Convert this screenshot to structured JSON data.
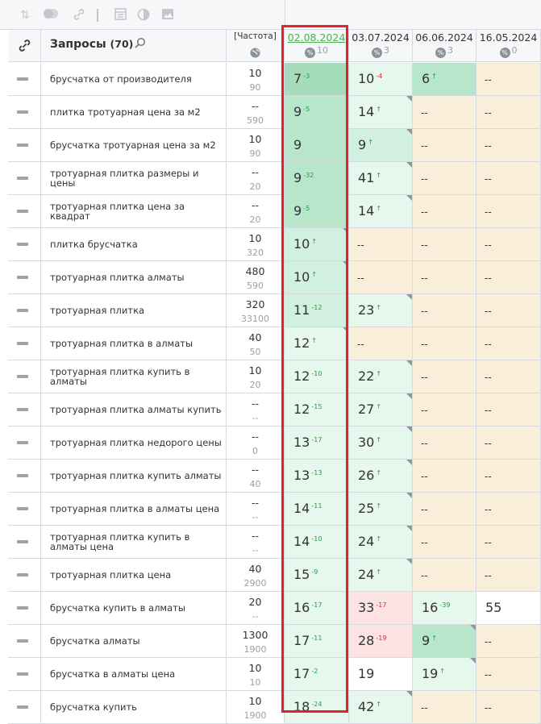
{
  "toolbar": {
    "icons": [
      "sort-icon",
      "toggle-icon",
      "link-icon",
      "calendar-icon",
      "contrast-icon",
      "image-icon"
    ]
  },
  "header": {
    "title": "Запросы",
    "count": "(70)",
    "freq_label": "[Частота]",
    "dates": [
      {
        "date": "02.08.2024",
        "count": "10",
        "active": true
      },
      {
        "date": "03.07.2024",
        "count": "3",
        "active": false
      },
      {
        "date": "06.06.2024",
        "count": "3",
        "active": false
      },
      {
        "date": "16.05.2024",
        "count": "0",
        "active": false
      }
    ]
  },
  "colors": {
    "highlight": "#e2232b",
    "up": "#2a9a3f",
    "down": "#e2232b",
    "link_date": "#4caf50"
  },
  "rows": [
    {
      "q": "брусчатка от производителя",
      "f1": "10",
      "f2": "90",
      "cells": [
        {
          "v": "7",
          "d": "-3",
          "t": "up",
          "bg": "g4"
        },
        {
          "v": "10",
          "d": "-4",
          "t": "dn",
          "bg": "g1"
        },
        {
          "v": "6",
          "d": "↑",
          "t": "up",
          "bg": "g3"
        },
        {
          "v": "--",
          "bg": "bg"
        }
      ]
    },
    {
      "q": "плитка тротуарная цена за м2",
      "f1": "--",
      "f2": "590",
      "cells": [
        {
          "v": "9",
          "d": "-5",
          "t": "up",
          "bg": "g3"
        },
        {
          "v": "14",
          "d": "↑",
          "t": "up",
          "bg": "g1",
          "tri": true
        },
        {
          "v": "--",
          "bg": "bg"
        },
        {
          "v": "--",
          "bg": "bg"
        }
      ]
    },
    {
      "q": "брусчатка тротуарная цена за м2",
      "f1": "10",
      "f2": "90",
      "cells": [
        {
          "v": "9",
          "d": "",
          "bg": "g3"
        },
        {
          "v": "9",
          "d": "↑",
          "t": "up",
          "bg": "g2",
          "tri": true
        },
        {
          "v": "--",
          "bg": "bg"
        },
        {
          "v": "--",
          "bg": "bg"
        }
      ]
    },
    {
      "q": "тротуарная плитка размеры и цены",
      "f1": "--",
      "f2": "20",
      "cells": [
        {
          "v": "9",
          "d": "-32",
          "t": "up",
          "bg": "g3"
        },
        {
          "v": "41",
          "d": "↑",
          "t": "up",
          "bg": "g1",
          "tri": true
        },
        {
          "v": "--",
          "bg": "bg"
        },
        {
          "v": "--",
          "bg": "bg"
        }
      ]
    },
    {
      "q": "тротуарная плитка цена за квадрат",
      "f1": "--",
      "f2": "20",
      "cells": [
        {
          "v": "9",
          "d": "-5",
          "t": "up",
          "bg": "g3"
        },
        {
          "v": "14",
          "d": "↑",
          "t": "up",
          "bg": "g1",
          "tri": true
        },
        {
          "v": "--",
          "bg": "bg"
        },
        {
          "v": "--",
          "bg": "bg"
        }
      ]
    },
    {
      "q": "плитка брусчатка",
      "f1": "10",
      "f2": "320",
      "cells": [
        {
          "v": "10",
          "d": "↑",
          "t": "up",
          "bg": "g2",
          "tri": true
        },
        {
          "v": "--",
          "bg": "bg"
        },
        {
          "v": "--",
          "bg": "bg"
        },
        {
          "v": "--",
          "bg": "bg"
        }
      ]
    },
    {
      "q": "тротуарная плитка алматы",
      "f1": "480",
      "f2": "590",
      "cells": [
        {
          "v": "10",
          "d": "↑",
          "t": "up",
          "bg": "g2",
          "tri": true
        },
        {
          "v": "--",
          "bg": "bg"
        },
        {
          "v": "--",
          "bg": "bg"
        },
        {
          "v": "--",
          "bg": "bg"
        }
      ]
    },
    {
      "q": "тротуарная плитка",
      "f1": "320",
      "f2": "33100",
      "cells": [
        {
          "v": "11",
          "d": "-12",
          "t": "up",
          "bg": "g2"
        },
        {
          "v": "23",
          "d": "↑",
          "t": "up",
          "bg": "g1",
          "tri": true
        },
        {
          "v": "--",
          "bg": "bg"
        },
        {
          "v": "--",
          "bg": "bg"
        }
      ]
    },
    {
      "q": "тротуарная плитка в алматы",
      "f1": "40",
      "f2": "50",
      "cells": [
        {
          "v": "12",
          "d": "↑",
          "t": "up",
          "bg": "g1",
          "tri": true
        },
        {
          "v": "--",
          "bg": "bg"
        },
        {
          "v": "--",
          "bg": "bg"
        },
        {
          "v": "--",
          "bg": "bg"
        }
      ]
    },
    {
      "q": "тротуарная плитка купить в алматы",
      "f1": "10",
      "f2": "20",
      "cells": [
        {
          "v": "12",
          "d": "-10",
          "t": "up",
          "bg": "g1"
        },
        {
          "v": "22",
          "d": "↑",
          "t": "up",
          "bg": "g1",
          "tri": true
        },
        {
          "v": "--",
          "bg": "bg"
        },
        {
          "v": "--",
          "bg": "bg"
        }
      ]
    },
    {
      "q": "тротуарная плитка алматы купить",
      "f1": "--",
      "f2": "--",
      "cells": [
        {
          "v": "12",
          "d": "-15",
          "t": "up",
          "bg": "g1"
        },
        {
          "v": "27",
          "d": "↑",
          "t": "up",
          "bg": "g1",
          "tri": true
        },
        {
          "v": "--",
          "bg": "bg"
        },
        {
          "v": "--",
          "bg": "bg"
        }
      ]
    },
    {
      "q": "тротуарная плитка недорого цены",
      "f1": "--",
      "f2": "0",
      "cells": [
        {
          "v": "13",
          "d": "-17",
          "t": "up",
          "bg": "g1"
        },
        {
          "v": "30",
          "d": "↑",
          "t": "up",
          "bg": "g1",
          "tri": true
        },
        {
          "v": "--",
          "bg": "bg"
        },
        {
          "v": "--",
          "bg": "bg"
        }
      ]
    },
    {
      "q": "тротуарная плитка купить алматы",
      "f1": "--",
      "f2": "40",
      "cells": [
        {
          "v": "13",
          "d": "-13",
          "t": "up",
          "bg": "g1"
        },
        {
          "v": "26",
          "d": "↑",
          "t": "up",
          "bg": "g1",
          "tri": true
        },
        {
          "v": "--",
          "bg": "bg"
        },
        {
          "v": "--",
          "bg": "bg"
        }
      ]
    },
    {
      "q": "тротуарная плитка в алматы цена",
      "f1": "--",
      "f2": "--",
      "cells": [
        {
          "v": "14",
          "d": "-11",
          "t": "up",
          "bg": "g1"
        },
        {
          "v": "25",
          "d": "↑",
          "t": "up",
          "bg": "g1",
          "tri": true
        },
        {
          "v": "--",
          "bg": "bg"
        },
        {
          "v": "--",
          "bg": "bg"
        }
      ]
    },
    {
      "q": "тротуарная плитка купить в алматы цена",
      "f1": "--",
      "f2": "--",
      "cells": [
        {
          "v": "14",
          "d": "-10",
          "t": "up",
          "bg": "g1"
        },
        {
          "v": "24",
          "d": "↑",
          "t": "up",
          "bg": "g1",
          "tri": true
        },
        {
          "v": "--",
          "bg": "bg"
        },
        {
          "v": "--",
          "bg": "bg"
        }
      ]
    },
    {
      "q": "тротуарная плитка цена",
      "f1": "40",
      "f2": "2900",
      "cells": [
        {
          "v": "15",
          "d": "-9",
          "t": "up",
          "bg": "g1"
        },
        {
          "v": "24",
          "d": "↑",
          "t": "up",
          "bg": "g1",
          "tri": true
        },
        {
          "v": "--",
          "bg": "bg"
        },
        {
          "v": "--",
          "bg": "bg"
        }
      ]
    },
    {
      "q": "брусчатка купить в алматы",
      "f1": "20",
      "f2": "--",
      "cells": [
        {
          "v": "16",
          "d": "-17",
          "t": "up",
          "bg": "g1"
        },
        {
          "v": "33",
          "d": "-17",
          "t": "dn",
          "bg": "pk"
        },
        {
          "v": "16",
          "d": "-39",
          "t": "up",
          "bg": "g1"
        },
        {
          "v": "55",
          "d": "",
          "bg": "wh"
        }
      ]
    },
    {
      "q": "брусчатка алматы",
      "f1": "1300",
      "f2": "1900",
      "cells": [
        {
          "v": "17",
          "d": "-11",
          "t": "up",
          "bg": "g1"
        },
        {
          "v": "28",
          "d": "-19",
          "t": "dn",
          "bg": "pk"
        },
        {
          "v": "9",
          "d": "↑",
          "t": "up",
          "bg": "g3",
          "tri": true
        },
        {
          "v": "--",
          "bg": "bg"
        }
      ]
    },
    {
      "q": "брусчатка в алматы цена",
      "f1": "10",
      "f2": "10",
      "cells": [
        {
          "v": "17",
          "d": "-2",
          "t": "up",
          "bg": "g1"
        },
        {
          "v": "19",
          "d": "",
          "bg": "wh"
        },
        {
          "v": "19",
          "d": "↑",
          "t": "up",
          "bg": "g1",
          "tri": true
        },
        {
          "v": "--",
          "bg": "bg"
        }
      ]
    },
    {
      "q": "брусчатка купить",
      "f1": "10",
      "f2": "1900",
      "cells": [
        {
          "v": "18",
          "d": "-24",
          "t": "up",
          "bg": "g1"
        },
        {
          "v": "42",
          "d": "↑",
          "t": "up",
          "bg": "g1",
          "tri": true
        },
        {
          "v": "--",
          "bg": "bg"
        },
        {
          "v": "--",
          "bg": "bg"
        }
      ]
    }
  ]
}
